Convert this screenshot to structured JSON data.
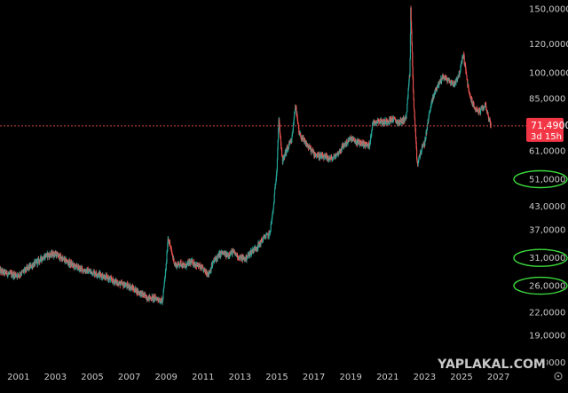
{
  "chart_data": {
    "type": "candlestick",
    "title": "",
    "xlabel": "",
    "ylabel": "",
    "y_scale": "log",
    "ylim": [
      15000,
      155000
    ],
    "xlim": [
      2000.0,
      2027.5
    ],
    "grid": false,
    "y_ticks": [
      {
        "value": 150000,
        "label": "150,0000"
      },
      {
        "value": 120000,
        "label": "120,0000"
      },
      {
        "value": 100000,
        "label": "100,0000"
      },
      {
        "value": 85000,
        "label": "85,0000"
      },
      {
        "value": 61000,
        "label": "61,0000"
      },
      {
        "value": 51000,
        "label": "51,0000"
      },
      {
        "value": 43000,
        "label": "43,0000"
      },
      {
        "value": 37000,
        "label": "37,0000"
      },
      {
        "value": 31000,
        "label": "31,0000"
      },
      {
        "value": 26000,
        "label": "26,0000"
      },
      {
        "value": 22000,
        "label": "22,0000"
      },
      {
        "value": 19000,
        "label": "19,0000"
      },
      {
        "value": 16000,
        "label": "16,0000"
      }
    ],
    "circled_ticks": [
      51000,
      31000,
      26000
    ],
    "x_ticks": [
      {
        "value": 2001,
        "label": "2001"
      },
      {
        "value": 2003,
        "label": "2003"
      },
      {
        "value": 2005,
        "label": "2005"
      },
      {
        "value": 2007,
        "label": "2007"
      },
      {
        "value": 2009,
        "label": "2009"
      },
      {
        "value": 2011,
        "label": "2011"
      },
      {
        "value": 2013,
        "label": "2013"
      },
      {
        "value": 2015,
        "label": "2015"
      },
      {
        "value": 2017,
        "label": "2017"
      },
      {
        "value": 2019,
        "label": "2019"
      },
      {
        "value": 2021,
        "label": "2021"
      },
      {
        "value": 2023,
        "label": "2023"
      },
      {
        "value": 2025,
        "label": "2025"
      },
      {
        "value": 2027,
        "label": "2027"
      }
    ],
    "price_line": {
      "value": 71490,
      "label": "71,4900",
      "countdown": "3d 15h"
    },
    "path": [
      [
        2000.0,
        28500
      ],
      [
        2000.5,
        28000
      ],
      [
        2001.0,
        27800
      ],
      [
        2001.5,
        29000
      ],
      [
        2002.0,
        30200
      ],
      [
        2002.5,
        31500
      ],
      [
        2003.0,
        31800
      ],
      [
        2003.5,
        30500
      ],
      [
        2004.0,
        29500
      ],
      [
        2004.5,
        28700
      ],
      [
        2005.0,
        28300
      ],
      [
        2005.5,
        27800
      ],
      [
        2006.0,
        27000
      ],
      [
        2006.5,
        26300
      ],
      [
        2007.0,
        25900
      ],
      [
        2007.5,
        25000
      ],
      [
        2008.0,
        24100
      ],
      [
        2008.5,
        24000
      ],
      [
        2008.8,
        23500
      ],
      [
        2009.0,
        29500
      ],
      [
        2009.1,
        35500
      ],
      [
        2009.3,
        32000
      ],
      [
        2009.5,
        29500
      ],
      [
        2009.8,
        30000
      ],
      [
        2010.0,
        29300
      ],
      [
        2010.3,
        30200
      ],
      [
        2010.6,
        29800
      ],
      [
        2011.0,
        28800
      ],
      [
        2011.3,
        28000
      ],
      [
        2011.6,
        30500
      ],
      [
        2012.0,
        32000
      ],
      [
        2012.3,
        31500
      ],
      [
        2012.6,
        32200
      ],
      [
        2013.0,
        31000
      ],
      [
        2013.3,
        30800
      ],
      [
        2013.6,
        32200
      ],
      [
        2014.0,
        33500
      ],
      [
        2014.3,
        35300
      ],
      [
        2014.6,
        36000
      ],
      [
        2014.8,
        42000
      ],
      [
        2015.0,
        55000
      ],
      [
        2015.1,
        75000
      ],
      [
        2015.3,
        57000
      ],
      [
        2015.5,
        61000
      ],
      [
        2015.8,
        65000
      ],
      [
        2016.0,
        82000
      ],
      [
        2016.2,
        68000
      ],
      [
        2016.5,
        64500
      ],
      [
        2017.0,
        60000
      ],
      [
        2017.3,
        59000
      ],
      [
        2017.6,
        58500
      ],
      [
        2018.0,
        58000
      ],
      [
        2018.3,
        60000
      ],
      [
        2018.6,
        63000
      ],
      [
        2019.0,
        66000
      ],
      [
        2019.3,
        64500
      ],
      [
        2019.6,
        64000
      ],
      [
        2020.0,
        63000
      ],
      [
        2020.2,
        73000
      ],
      [
        2020.5,
        74000
      ],
      [
        2020.8,
        73000
      ],
      [
        2021.0,
        74000
      ],
      [
        2021.3,
        74500
      ],
      [
        2021.6,
        73000
      ],
      [
        2022.0,
        75000
      ],
      [
        2022.2,
        100000
      ],
      [
        2022.25,
        150000
      ],
      [
        2022.4,
        85000
      ],
      [
        2022.6,
        56000
      ],
      [
        2022.8,
        61000
      ],
      [
        2023.0,
        64000
      ],
      [
        2023.3,
        80000
      ],
      [
        2023.6,
        90000
      ],
      [
        2024.0,
        98000
      ],
      [
        2024.3,
        95000
      ],
      [
        2024.6,
        93000
      ],
      [
        2024.9,
        100000
      ],
      [
        2025.1,
        113000
      ],
      [
        2025.4,
        88000
      ],
      [
        2025.7,
        80000
      ],
      [
        2026.0,
        78000
      ],
      [
        2026.3,
        82000
      ],
      [
        2026.5,
        74000
      ],
      [
        2026.6,
        71490
      ]
    ]
  },
  "watermark": {
    "text": "YAPLAKAL.COM"
  }
}
